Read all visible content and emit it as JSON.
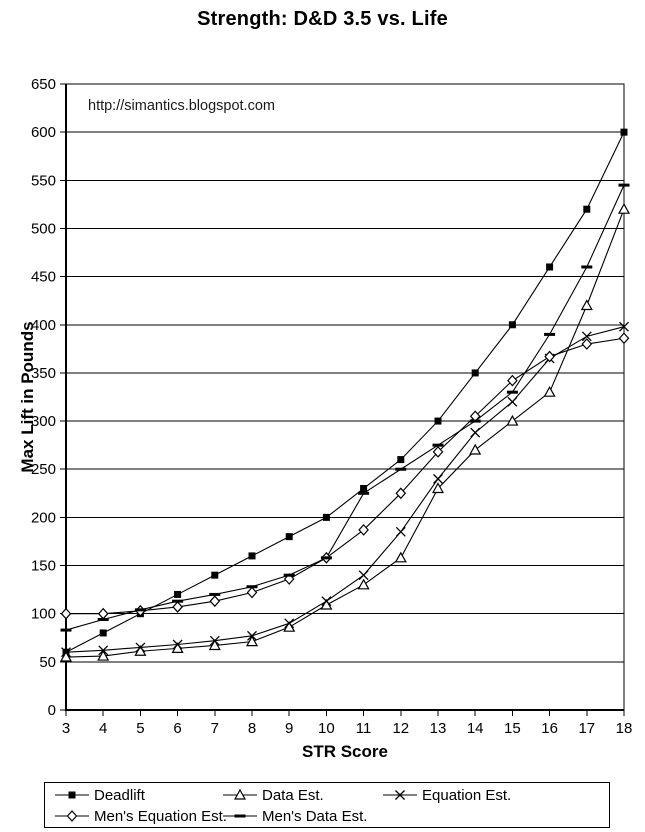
{
  "page": {
    "title": "Strength: D&D 3.5 vs. Life",
    "watermark": "http://simantics.blogspot.com"
  },
  "chart_data": {
    "type": "line",
    "title": "Strength: D&D 3.5 vs. Life",
    "xlabel": "STR Score",
    "ylabel": "Max Lift in Pounds",
    "watermark": "http://simantics.blogspot.com",
    "x": [
      3,
      4,
      5,
      6,
      7,
      8,
      9,
      10,
      11,
      12,
      13,
      14,
      15,
      16,
      17,
      18
    ],
    "ylim": [
      0,
      650
    ],
    "y_tick_step": 50,
    "grid": true,
    "legend_position": "bottom",
    "line_color": "#000000",
    "series": [
      {
        "name": "Deadlift",
        "marker": "square-filled",
        "values": [
          60,
          80,
          100,
          120,
          140,
          160,
          180,
          200,
          230,
          260,
          300,
          350,
          400,
          460,
          520,
          600
        ]
      },
      {
        "name": "Data Est.",
        "marker": "triangle-open",
        "values": [
          55,
          56,
          61,
          64,
          67,
          71,
          86,
          109,
          130,
          158,
          230,
          270,
          300,
          330,
          420,
          520
        ]
      },
      {
        "name": "Equation Est.",
        "marker": "x",
        "values": [
          60,
          62,
          65,
          68,
          72,
          77,
          90,
          113,
          140,
          185,
          240,
          288,
          320,
          365,
          388,
          398
        ]
      },
      {
        "name": "Men's Equation Est.",
        "marker": "diamond-open",
        "values": [
          100,
          100,
          103,
          107,
          113,
          122,
          136,
          158,
          187,
          225,
          268,
          305,
          342,
          367,
          380,
          386
        ]
      },
      {
        "name": "Men's Data Est.",
        "marker": "dash",
        "values": [
          83,
          94,
          104,
          113,
          120,
          128,
          140,
          158,
          225,
          250,
          275,
          300,
          330,
          390,
          460,
          545
        ]
      }
    ]
  }
}
